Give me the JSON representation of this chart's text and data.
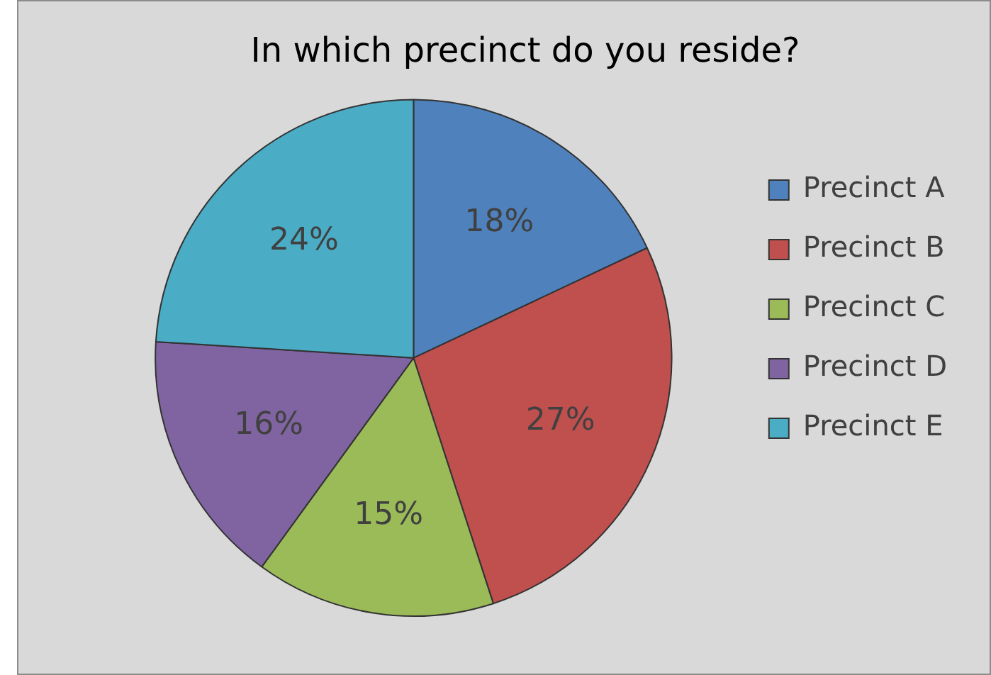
{
  "chart_data": {
    "type": "pie",
    "title": "In which precinct do you reside?",
    "categories": [
      "Precinct A",
      "Precinct B",
      "Precinct C",
      "Precinct D",
      "Precinct E"
    ],
    "values": [
      18,
      27,
      15,
      16,
      24
    ],
    "value_labels": [
      "18%",
      "27%",
      "15%",
      "16%",
      "24%"
    ],
    "colors": [
      "#4f81bd",
      "#c0504d",
      "#9bbb59",
      "#8064a2",
      "#4bacc6"
    ],
    "legend": "right"
  }
}
